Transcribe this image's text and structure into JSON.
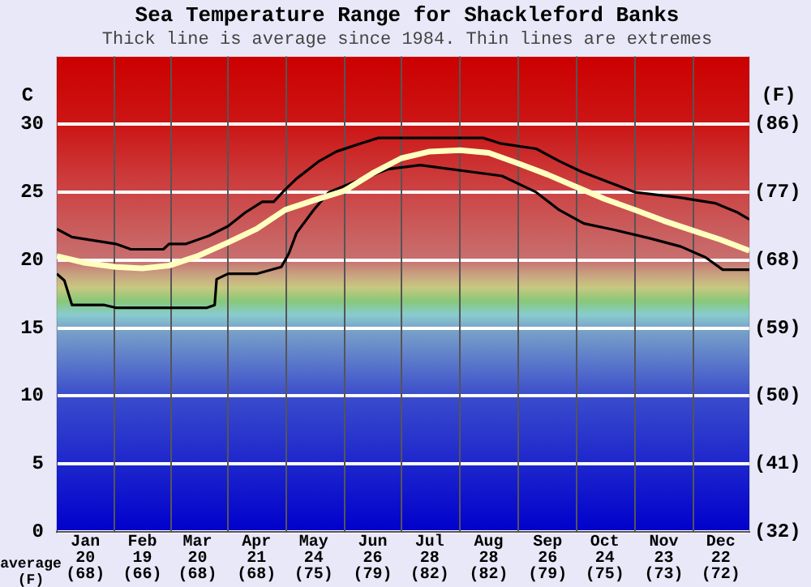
{
  "chart_data": {
    "type": "line",
    "title": "Sea Temperature Range for Shackleford Banks",
    "subtitle": "Thick line is average since 1984. Thin lines are extremes",
    "ylabel": "C",
    "y2label": "(F)",
    "xlim": [
      "--01-01",
      "--12-31"
    ],
    "xticks": [
      {
        "value": "--01-16",
        "label": "Jan 20 (68)"
      },
      {
        "value": "--02-15",
        "label": "Feb 19 (66)"
      },
      {
        "value": "--03-16",
        "label": "Mar 20 (68)"
      },
      {
        "value": "--04-16",
        "label": "Apr 21 (68)"
      },
      {
        "value": "--05-16",
        "label": "May 24 (75)"
      },
      {
        "value": "--06-16",
        "label": "Jun 26 (79)"
      },
      {
        "value": "--07-16",
        "label": "Jul 28 (82)"
      },
      {
        "value": "--08-16",
        "label": "Aug 28 (82)"
      },
      {
        "value": "--09-16",
        "label": "Sep 26 (79)"
      },
      {
        "value": "--10-16",
        "label": "Oct 24 (75)"
      },
      {
        "value": "--11-16",
        "label": "Nov 23 (73)"
      },
      {
        "value": "--12-16",
        "label": "Dec 22 (72)"
      }
    ],
    "annotations": [
      "average (F)"
    ],
    "ylim": [
      0,
      35
    ],
    "yticks": [
      0,
      5,
      10,
      15,
      20,
      25,
      30
    ],
    "y2lim": [
      32,
      95
    ],
    "y2ticks": [
      {
        "value": 32,
        "label": "(32)"
      },
      {
        "value": 41,
        "label": "(41)"
      },
      {
        "value": 50,
        "label": "(50)"
      },
      {
        "value": 59,
        "label": "(59)"
      },
      {
        "value": 68,
        "label": "(68)"
      },
      {
        "value": 77,
        "label": "(77)"
      },
      {
        "value": 86,
        "label": "(86)"
      }
    ],
    "grid": true,
    "legend": false,
    "series": [
      {
        "color": "#000000",
        "line_style": "solid",
        "x": [
          "--01-01",
          "--01-09",
          "--02-01",
          "--02-09",
          "--02-26",
          "--03-01",
          "--03-10",
          "--03-22",
          "--04-01",
          "--04-10",
          "--04-19",
          "--04-25",
          "--05-01",
          "--05-07",
          "--05-19",
          "--05-28",
          "--06-10",
          "--06-19",
          "--07-10",
          "--08-13",
          "--08-22",
          "--09-10",
          "--09-22",
          "--10-04",
          "--10-19",
          "--11-01",
          "--11-25",
          "--12-13",
          "--12-25",
          "--12-31"
        ],
        "values": [
          22.3,
          21.7,
          21.2,
          20.8,
          20.8,
          21.2,
          21.2,
          21.8,
          22.5,
          23.5,
          24.3,
          24.3,
          25.2,
          26.0,
          27.3,
          28.0,
          28.6,
          29.0,
          29.0,
          29.0,
          28.6,
          28.2,
          27.3,
          26.5,
          25.7,
          25.0,
          24.6,
          24.2,
          23.5,
          23.0
        ]
      },
      {
        "color": "#ffffc0",
        "line_style": "solid",
        "x": [
          "--01-01",
          "--01-16",
          "--02-01",
          "--02-15",
          "--03-01",
          "--03-16",
          "--04-01",
          "--04-16",
          "--05-01",
          "--05-16",
          "--06-01",
          "--06-16",
          "--07-01",
          "--07-16",
          "--08-01",
          "--08-16",
          "--09-01",
          "--09-16",
          "--10-01",
          "--10-16",
          "--11-01",
          "--11-16",
          "--12-01",
          "--12-16",
          "--12-31"
        ],
        "values": [
          20.3,
          19.8,
          19.5,
          19.4,
          19.6,
          20.3,
          21.3,
          22.3,
          23.7,
          24.4,
          25.1,
          26.4,
          27.5,
          28.0,
          28.1,
          27.9,
          27.1,
          26.3,
          25.4,
          24.5,
          23.7,
          22.9,
          22.2,
          21.5,
          20.7
        ]
      },
      {
        "color": "#000000",
        "line_style": "solid",
        "x": [
          "--01-01",
          "--01-05",
          "--01-09",
          "--01-26",
          "--02-01",
          "--03-21",
          "--03-25",
          "--03-26",
          "--04-01",
          "--04-16",
          "--04-29",
          "--05-03",
          "--05-07",
          "--05-16",
          "--05-24",
          "--06-07",
          "--06-24",
          "--07-11",
          "--08-23",
          "--09-10",
          "--09-22",
          "--10-05",
          "--10-22",
          "--11-09",
          "--11-25",
          "--12-08",
          "--12-17",
          "--12-31"
        ],
        "values": [
          19.0,
          18.5,
          16.7,
          16.7,
          16.5,
          16.5,
          16.7,
          18.6,
          19.0,
          19.0,
          19.5,
          20.5,
          22.0,
          23.7,
          25.0,
          25.8,
          26.7,
          27.0,
          26.2,
          25.0,
          23.7,
          22.7,
          22.2,
          21.6,
          21.0,
          20.2,
          19.3,
          19.3
        ]
      }
    ]
  }
}
